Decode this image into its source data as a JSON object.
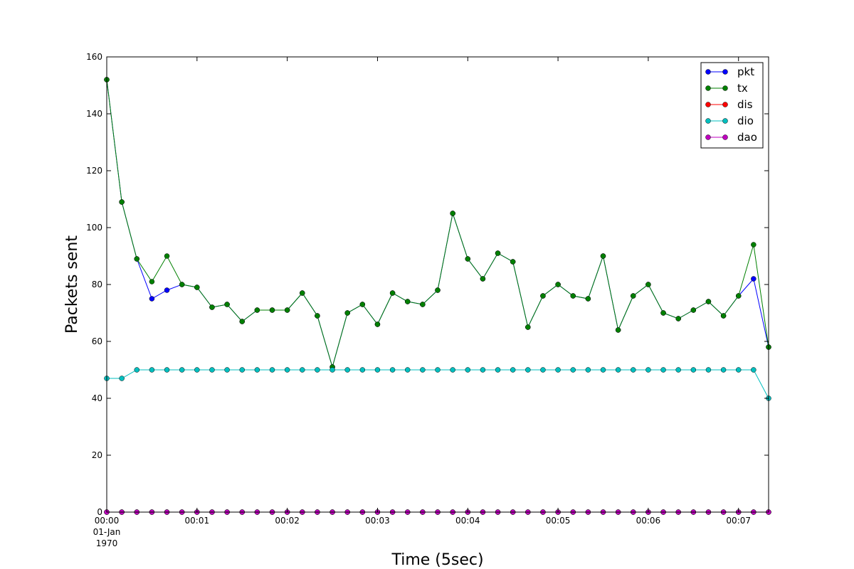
{
  "chart_data": {
    "type": "line",
    "title": "",
    "xlabel": "Time (5sec)",
    "ylabel": "Packets sent",
    "ylim": [
      0,
      160
    ],
    "xlim": [
      0,
      44
    ],
    "grid": false,
    "legend_position": "top-right",
    "y_ticks": [
      "0",
      "20",
      "40",
      "60",
      "80",
      "100",
      "120",
      "140",
      "160"
    ],
    "x_ticks": [
      {
        "x": 0,
        "label": "00:00",
        "date_label": [
          "01-Jan",
          "1970"
        ]
      },
      {
        "x": 6,
        "label": "00:01"
      },
      {
        "x": 12,
        "label": "00:02"
      },
      {
        "x": 18,
        "label": "00:03"
      },
      {
        "x": 24,
        "label": "00:04"
      },
      {
        "x": 30,
        "label": "00:05"
      },
      {
        "x": 36,
        "label": "00:06"
      },
      {
        "x": 42,
        "label": "00:07"
      }
    ],
    "series": [
      {
        "name": "pkt",
        "color": "#0000ff",
        "values": [
          152,
          109,
          89,
          75,
          78,
          80,
          79,
          72,
          73,
          67,
          71,
          71,
          71,
          77,
          69,
          51,
          70,
          73,
          66,
          77,
          74,
          73,
          78,
          105,
          89,
          82,
          91,
          88,
          65,
          76,
          80,
          76,
          75,
          90,
          64,
          76,
          80,
          70,
          68,
          71,
          74,
          69,
          76,
          82,
          58
        ]
      },
      {
        "name": "tx",
        "color": "#008000",
        "values": [
          152,
          109,
          89,
          81,
          90,
          80,
          79,
          72,
          73,
          67,
          71,
          71,
          71,
          77,
          69,
          51,
          70,
          73,
          66,
          77,
          74,
          73,
          78,
          105,
          89,
          82,
          91,
          88,
          65,
          76,
          80,
          76,
          75,
          90,
          64,
          76,
          80,
          70,
          68,
          71,
          74,
          69,
          76,
          94,
          58
        ]
      },
      {
        "name": "dis",
        "color": "#ff0000",
        "values": [
          0,
          0,
          0,
          0,
          0,
          0,
          0,
          0,
          0,
          0,
          0,
          0,
          0,
          0,
          0,
          0,
          0,
          0,
          0,
          0,
          0,
          0,
          0,
          0,
          0,
          0,
          0,
          0,
          0,
          0,
          0,
          0,
          0,
          0,
          0,
          0,
          0,
          0,
          0,
          0,
          0,
          0,
          0,
          0,
          0
        ]
      },
      {
        "name": "dio",
        "color": "#00bfbf",
        "values": [
          47,
          47,
          50,
          50,
          50,
          50,
          50,
          50,
          50,
          50,
          50,
          50,
          50,
          50,
          50,
          50,
          50,
          50,
          50,
          50,
          50,
          50,
          50,
          50,
          50,
          50,
          50,
          50,
          50,
          50,
          50,
          50,
          50,
          50,
          50,
          50,
          50,
          50,
          50,
          50,
          50,
          50,
          50,
          50,
          40
        ]
      },
      {
        "name": "dao",
        "color": "#bf00bf",
        "values": [
          0,
          0,
          0,
          0,
          0,
          0,
          0,
          0,
          0,
          0,
          0,
          0,
          0,
          0,
          0,
          0,
          0,
          0,
          0,
          0,
          0,
          0,
          0,
          0,
          0,
          0,
          0,
          0,
          0,
          0,
          0,
          0,
          0,
          0,
          0,
          0,
          0,
          0,
          0,
          0,
          0,
          0,
          0,
          0,
          0
        ]
      }
    ]
  }
}
